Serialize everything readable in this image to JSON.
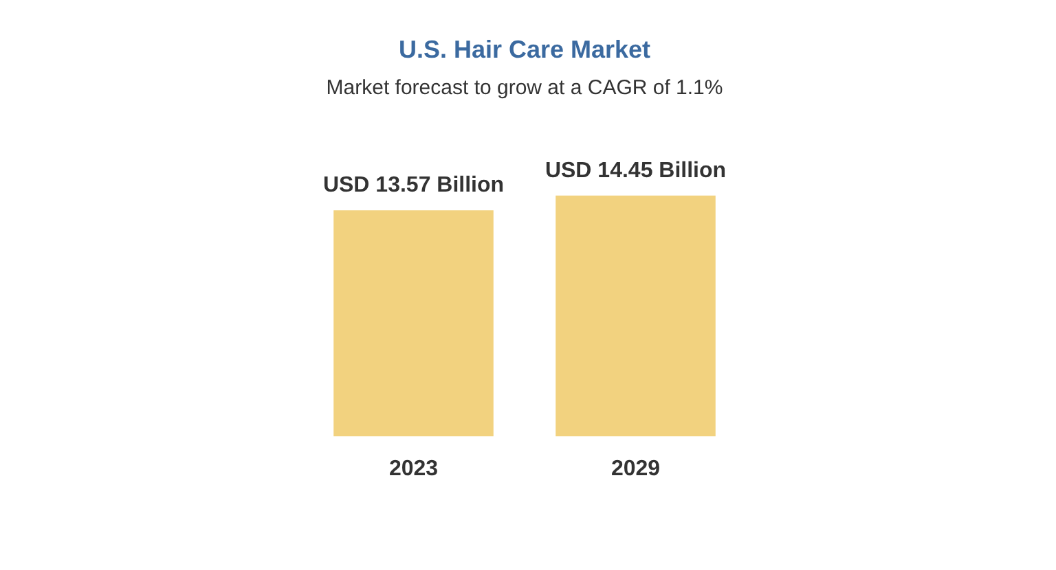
{
  "chart_data": {
    "type": "bar",
    "title": "U.S. Hair Care Market",
    "subtitle": "Market forecast to grow at a CAGR of 1.1%",
    "categories": [
      "2023",
      "2029"
    ],
    "values": [
      13.57,
      14.45
    ],
    "value_labels": [
      "USD 13.57 Billion",
      "USD 14.45 Billion"
    ],
    "color": "#f2d27f",
    "grid": false,
    "legend": false
  }
}
